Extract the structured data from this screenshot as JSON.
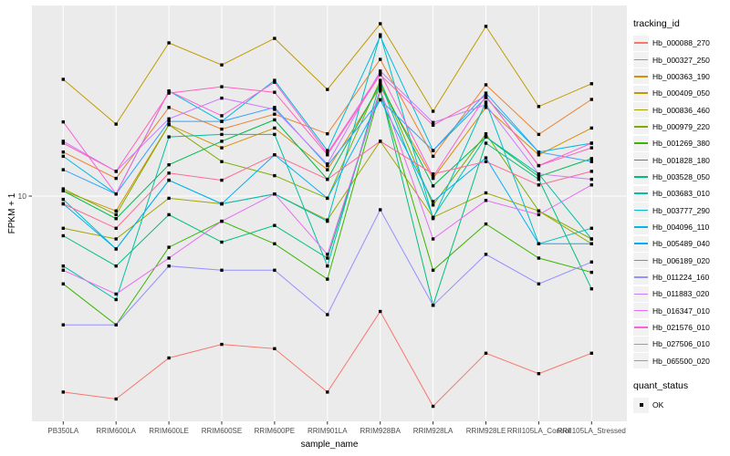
{
  "axes": {
    "y_label": "FPKM + 1",
    "x_label": "sample_name",
    "y_tick_labels": [
      "10"
    ],
    "tick_text_color": "#4d4d4d"
  },
  "legend": {
    "tracking_title": "tracking_id",
    "quant_title": "quant_status",
    "quant_items": [
      {
        "label": "OK",
        "marker": "black-square"
      }
    ]
  },
  "colors": {
    "panel_background": "#EBEBEB",
    "gridline": "#FFFFFF",
    "point": "#000000",
    "tick_mark": "#333333"
  },
  "chart_data": {
    "type": "line",
    "title": "",
    "xlabel": "sample_name",
    "ylabel": "FPKM + 1",
    "y_scale": "log10",
    "y_ticks": [
      10
    ],
    "ylim_approx": [
      1.2,
      60
    ],
    "grid": "major",
    "legend_position": "right",
    "point_shape": "filled-square",
    "categories": [
      "PB350LA",
      "RRIM600LA",
      "RRIM600LE",
      "RRIM600SE",
      "RRIM600PE",
      "RRIM901LA",
      "RRIM928BA",
      "RRIM928LA",
      "RRIM928LE",
      "RRII105LA_Control",
      "RRII105LA_Stressed"
    ],
    "series": [
      {
        "name": "Hb_000088_270",
        "color": "#F8766D",
        "values": [
          1.6,
          1.5,
          2.2,
          2.5,
          2.4,
          1.6,
          3.4,
          1.4,
          2.3,
          1.9,
          2.3
        ]
      },
      {
        "name": "Hb_000327_250",
        "color": "#EA8331",
        "values": [
          15.1,
          11.8,
          22.9,
          18.7,
          21.5,
          17.9,
          35.9,
          14.5,
          28.3,
          17.8,
          24.7
        ]
      },
      {
        "name": "Hb_000363_190",
        "color": "#D89000",
        "values": [
          10.5,
          8.7,
          19.5,
          15.7,
          18.9,
          12.8,
          27.8,
          11.8,
          22.9,
          14.7,
          18.9
        ]
      },
      {
        "name": "Hb_000409_050",
        "color": "#C09B00",
        "values": [
          29.8,
          19.6,
          41.9,
          34.1,
          43.7,
          27.1,
          50.1,
          22.1,
          48.9,
          23.1,
          28.6
        ]
      },
      {
        "name": "Hb_000836_460",
        "color": "#A3A500",
        "values": [
          7.4,
          6.7,
          9.8,
          9.3,
          10.2,
          8.0,
          16.7,
          8.2,
          10.3,
          8.7,
          6.4
        ]
      },
      {
        "name": "Hb_000979_220",
        "color": "#7CAE00",
        "values": [
          10.7,
          8.4,
          19.5,
          13.8,
          12.1,
          9.8,
          29.5,
          9.2,
          17.9,
          8.7,
          6.7
        ]
      },
      {
        "name": "Hb_001269_380",
        "color": "#39B600",
        "values": [
          4.4,
          3.0,
          6.2,
          7.9,
          6.4,
          4.6,
          26.7,
          5.0,
          7.7,
          5.6,
          4.9
        ]
      },
      {
        "name": "Hb_001828_180",
        "color": "#00BB4E",
        "values": [
          10.5,
          8.1,
          13.4,
          16.7,
          20.4,
          11.7,
          28.6,
          11.0,
          17.4,
          12.0,
          14.2
        ]
      },
      {
        "name": "Hb_003528_050",
        "color": "#00BF7D",
        "values": [
          6.9,
          5.2,
          8.4,
          6.5,
          7.6,
          5.6,
          27.1,
          3.6,
          16.4,
          11.7,
          4.2
        ]
      },
      {
        "name": "Hb_003683_010",
        "color": "#00C1A3",
        "values": [
          5.2,
          3.8,
          17.4,
          17.8,
          17.8,
          5.2,
          29.0,
          8.2,
          17.4,
          12.3,
          6.7
        ]
      },
      {
        "name": "Hb_003777_290",
        "color": "#00BFC4",
        "values": [
          9.7,
          6.1,
          11.6,
          9.3,
          10.2,
          7.9,
          45.2,
          8.1,
          24.1,
          6.4,
          7.4
        ]
      },
      {
        "name": "Hb_004096_110",
        "color": "#00BAE0",
        "values": [
          14.5,
          10.2,
          26.7,
          20.1,
          29.5,
          15.3,
          44.5,
          15.3,
          25.1,
          15.1,
          16.4
        ]
      },
      {
        "name": "Hb_005489_040",
        "color": "#00B0F6",
        "values": [
          9.3,
          6.1,
          11.6,
          9.3,
          14.7,
          9.8,
          24.6,
          9.5,
          14.3,
          6.4,
          6.4
        ]
      },
      {
        "name": "Hb_006189_020",
        "color": "#35A2FF",
        "values": [
          12.8,
          10.2,
          20.1,
          20.1,
          22.9,
          13.3,
          24.6,
          15.3,
          26.2,
          15.1,
          13.8
        ]
      },
      {
        "name": "Hb_011224_160",
        "color": "#9590FF",
        "values": [
          3.0,
          3.0,
          5.2,
          5.0,
          5.0,
          3.3,
          8.8,
          3.6,
          5.8,
          4.4,
          5.4
        ]
      },
      {
        "name": "Hb_011883_020",
        "color": "#C77CFF",
        "values": [
          16.7,
          12.6,
          20.6,
          25.0,
          22.5,
          13.5,
          32.2,
          19.9,
          23.5,
          12.3,
          11.7
        ]
      },
      {
        "name": "Hb_016347_010",
        "color": "#E76BF3",
        "values": [
          5.0,
          4.0,
          5.6,
          7.9,
          10.2,
          5.8,
          27.1,
          6.7,
          9.6,
          8.4,
          11.1
        ]
      },
      {
        "name": "Hb_021576_010",
        "color": "#FA62DB",
        "values": [
          20.0,
          10.2,
          26.7,
          21.2,
          29.0,
          14.9,
          31.6,
          12.0,
          25.5,
          13.3,
          16.4
        ]
      },
      {
        "name": "Hb_027506_010",
        "color": "#FF62BC",
        "values": [
          16.4,
          12.6,
          26.2,
          27.8,
          26.4,
          14.7,
          31.1,
          19.4,
          25.5,
          13.3,
          15.7
        ]
      },
      {
        "name": "Hb_065500_020",
        "color": "#FF6A98",
        "values": [
          9.3,
          7.4,
          12.4,
          11.6,
          14.7,
          11.7,
          16.7,
          12.3,
          13.8,
          11.1,
          12.6
        ]
      }
    ],
    "quant_status": "OK"
  }
}
